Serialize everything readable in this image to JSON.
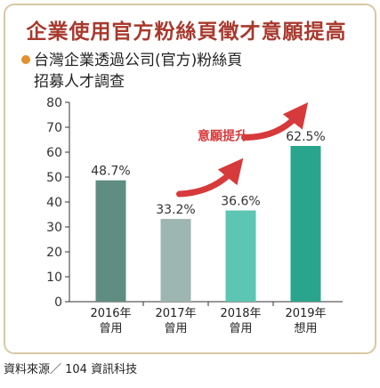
{
  "header": {
    "title": "企業使用官方粉絲頁徵才意願提高",
    "subtitle_line1": "台灣企業透過公司(官方)粉絲頁",
    "subtitle_line2": "招募人才調查"
  },
  "footer": {
    "source": "資料來源／ 104 資訊科技"
  },
  "chart_data": {
    "type": "bar",
    "categories": [
      [
        "2016年",
        "曾用"
      ],
      [
        "2017年",
        "曾用"
      ],
      [
        "2018年",
        "曾用"
      ],
      [
        "2019年",
        "想用"
      ]
    ],
    "values": [
      48.7,
      33.2,
      36.6,
      62.5
    ],
    "value_labels": [
      "48.7%",
      "33.2%",
      "36.6%",
      "62.5%"
    ],
    "bar_colors": [
      "#5f8d82",
      "#9db6b1",
      "#5cc5b3",
      "#2aa58d"
    ],
    "ylim": [
      0,
      80
    ],
    "yticks": [
      "0",
      "10",
      "20",
      "30",
      "40",
      "50",
      "60",
      "70",
      "80"
    ],
    "annotation": "意願提升",
    "arrow_color": "#d73a3a",
    "grid": false
  }
}
